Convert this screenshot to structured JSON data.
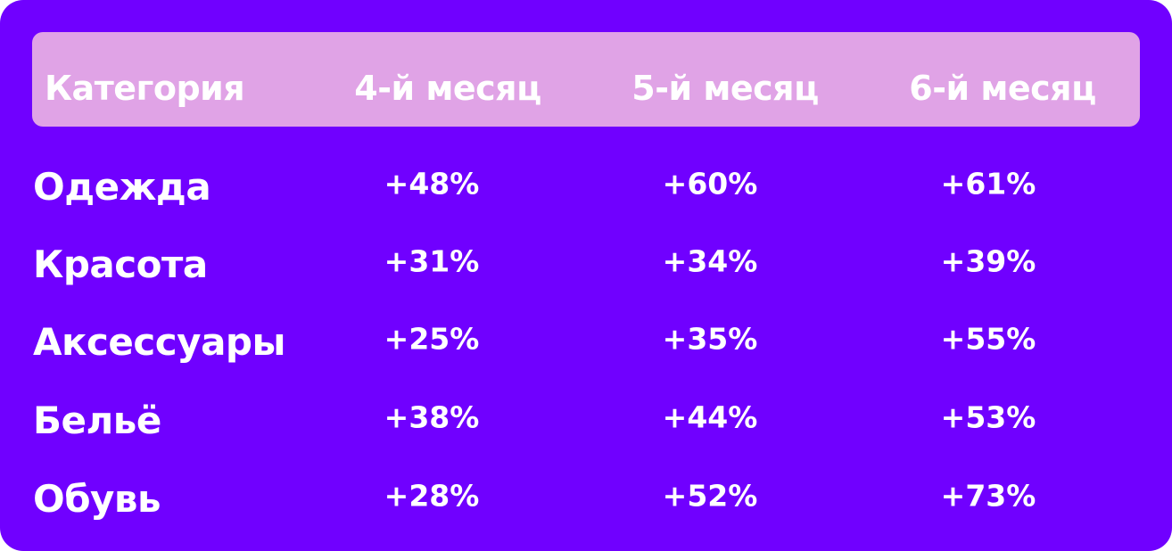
{
  "table": {
    "header": [
      "Категория",
      "4-й месяц",
      "5-й месяц",
      "6-й месяц"
    ],
    "rows": [
      [
        "Одежда",
        "+48%",
        "+60%",
        "+61%"
      ],
      [
        "Красота",
        "+31%",
        "+34%",
        "+39%"
      ],
      [
        "Аксессуары",
        "+25%",
        "+35%",
        "+55%"
      ],
      [
        "Бельё",
        "+38%",
        "+44%",
        "+53%"
      ],
      [
        "Обувь",
        "+28%",
        "+52%",
        "+73%"
      ]
    ]
  }
}
